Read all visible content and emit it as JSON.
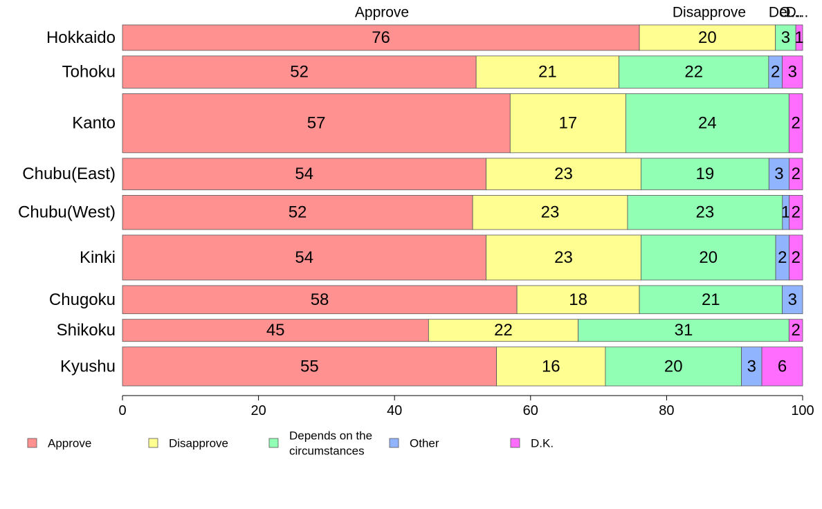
{
  "chart_data": {
    "type": "bar",
    "orientation": "horizontal",
    "stacked": true,
    "marimekko_row_heights": true,
    "xlim": [
      0,
      100
    ],
    "x_ticks": [
      "0",
      "20",
      "40",
      "60",
      "80",
      "100"
    ],
    "top_labels": [
      "Approve",
      "Disapprove",
      "De...",
      "O...",
      "D..."
    ],
    "categories": [
      "Hokkaido",
      "Tohoku",
      "Kanto",
      "Chubu(East)",
      "Chubu(West)",
      "Kinki",
      "Chugoku",
      "Shikoku",
      "Kyushu"
    ],
    "row_weights": [
      38,
      48,
      88,
      47,
      51,
      67,
      42,
      33,
      58
    ],
    "series": [
      {
        "name": "Approve",
        "color": "#ff9191",
        "values": [
          76,
          52,
          57,
          54,
          52,
          54,
          58,
          45,
          55
        ]
      },
      {
        "name": "Disapprove",
        "color": "#ffff91",
        "values": [
          20,
          21,
          17,
          23,
          23,
          23,
          18,
          22,
          16
        ]
      },
      {
        "name": "Depends on the circumstances",
        "color": "#91ffb4",
        "values": [
          3,
          22,
          24,
          19,
          23,
          20,
          21,
          31,
          20
        ]
      },
      {
        "name": "Other",
        "color": "#91b4ff",
        "values": [
          0,
          2,
          0,
          3,
          1,
          2,
          3,
          0,
          3
        ]
      },
      {
        "name": "D.K.",
        "color": "#ff6dff",
        "values": [
          1,
          3,
          2,
          2,
          2,
          2,
          0,
          2,
          6
        ]
      }
    ],
    "legend": {
      "placement": "bottom",
      "entries": [
        {
          "lines": [
            "Approve"
          ],
          "color": "#ff9191"
        },
        {
          "lines": [
            "Disapprove"
          ],
          "color": "#ffff91"
        },
        {
          "lines": [
            "Depends on the",
            "circumstances"
          ],
          "color": "#91ffb4"
        },
        {
          "lines": [
            "Other"
          ],
          "color": "#91b4ff"
        },
        {
          "lines": [
            "D.K."
          ],
          "color": "#ff6dff"
        }
      ]
    }
  }
}
